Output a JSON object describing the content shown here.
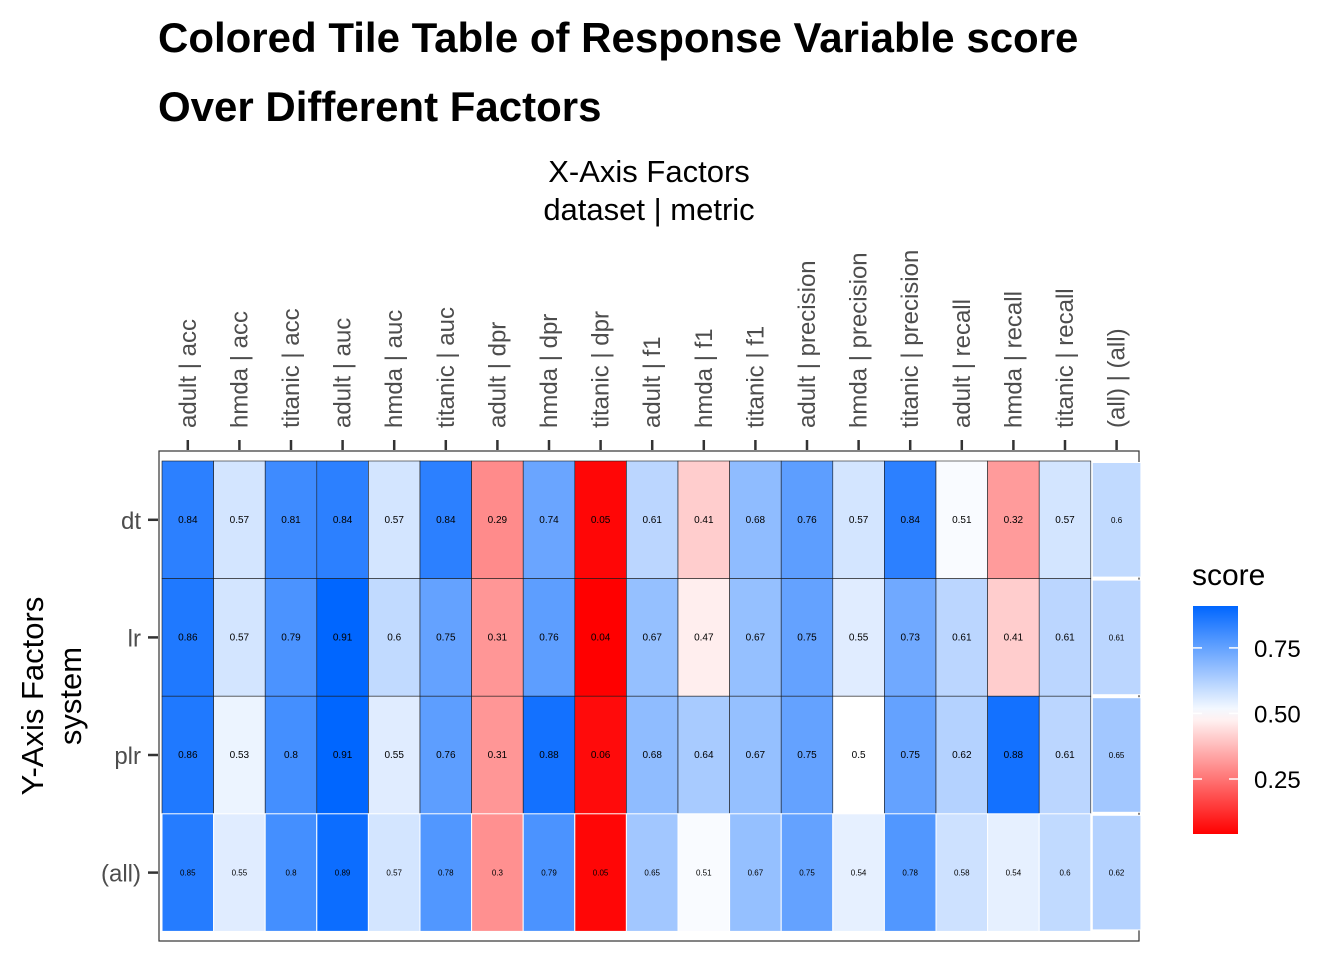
{
  "chart_data": {
    "type": "heatmap",
    "title_lines": [
      "Colored Tile Table of Response Variable score",
      "Over Different Factors"
    ],
    "xlabel_lines": [
      "X-Axis Factors",
      "dataset | metric"
    ],
    "ylabel_lines": [
      "Y-Axis Factors",
      "system"
    ],
    "x_categories": [
      "adult | acc",
      "hmda | acc",
      "titanic | acc",
      "adult | auc",
      "hmda | auc",
      "titanic | auc",
      "adult | dpr",
      "hmda | dpr",
      "titanic | dpr",
      "adult | f1",
      "hmda | f1",
      "titanic | f1",
      "adult | precision",
      "hmda | precision",
      "titanic | precision",
      "adult | recall",
      "hmda | recall",
      "titanic | recall",
      "(all) | (all)"
    ],
    "y_categories": [
      "dt",
      "lr",
      "plr",
      "(all)"
    ],
    "values": [
      [
        0.84,
        0.57,
        0.81,
        0.84,
        0.57,
        0.84,
        0.29,
        0.74,
        0.05,
        0.61,
        0.41,
        0.68,
        0.76,
        0.57,
        0.84,
        0.51,
        0.32,
        0.57,
        0.6
      ],
      [
        0.86,
        0.57,
        0.79,
        0.91,
        0.6,
        0.75,
        0.31,
        0.76,
        0.04,
        0.67,
        0.47,
        0.67,
        0.75,
        0.55,
        0.73,
        0.61,
        0.41,
        0.61,
        0.61
      ],
      [
        0.86,
        0.53,
        0.8,
        0.91,
        0.55,
        0.76,
        0.31,
        0.88,
        0.06,
        0.68,
        0.64,
        0.67,
        0.75,
        0.5,
        0.75,
        0.62,
        0.88,
        0.61,
        0.65
      ],
      [
        0.85,
        0.55,
        0.8,
        0.89,
        0.57,
        0.78,
        0.3,
        0.79,
        0.05,
        0.65,
        0.51,
        0.67,
        0.75,
        0.54,
        0.78,
        0.58,
        0.54,
        0.6,
        0.62
      ]
    ],
    "color_scale": {
      "low": "#ff0000",
      "mid": "#ffffff",
      "high": "#0066ff",
      "midpoint": 0.5,
      "limits": [
        0.04,
        0.91
      ]
    },
    "legend": {
      "title": "score",
      "breaks": [
        0.25,
        0.5,
        0.75
      ],
      "labels": [
        "0.25",
        "0.50",
        "0.75"
      ],
      "placement": "right"
    }
  }
}
